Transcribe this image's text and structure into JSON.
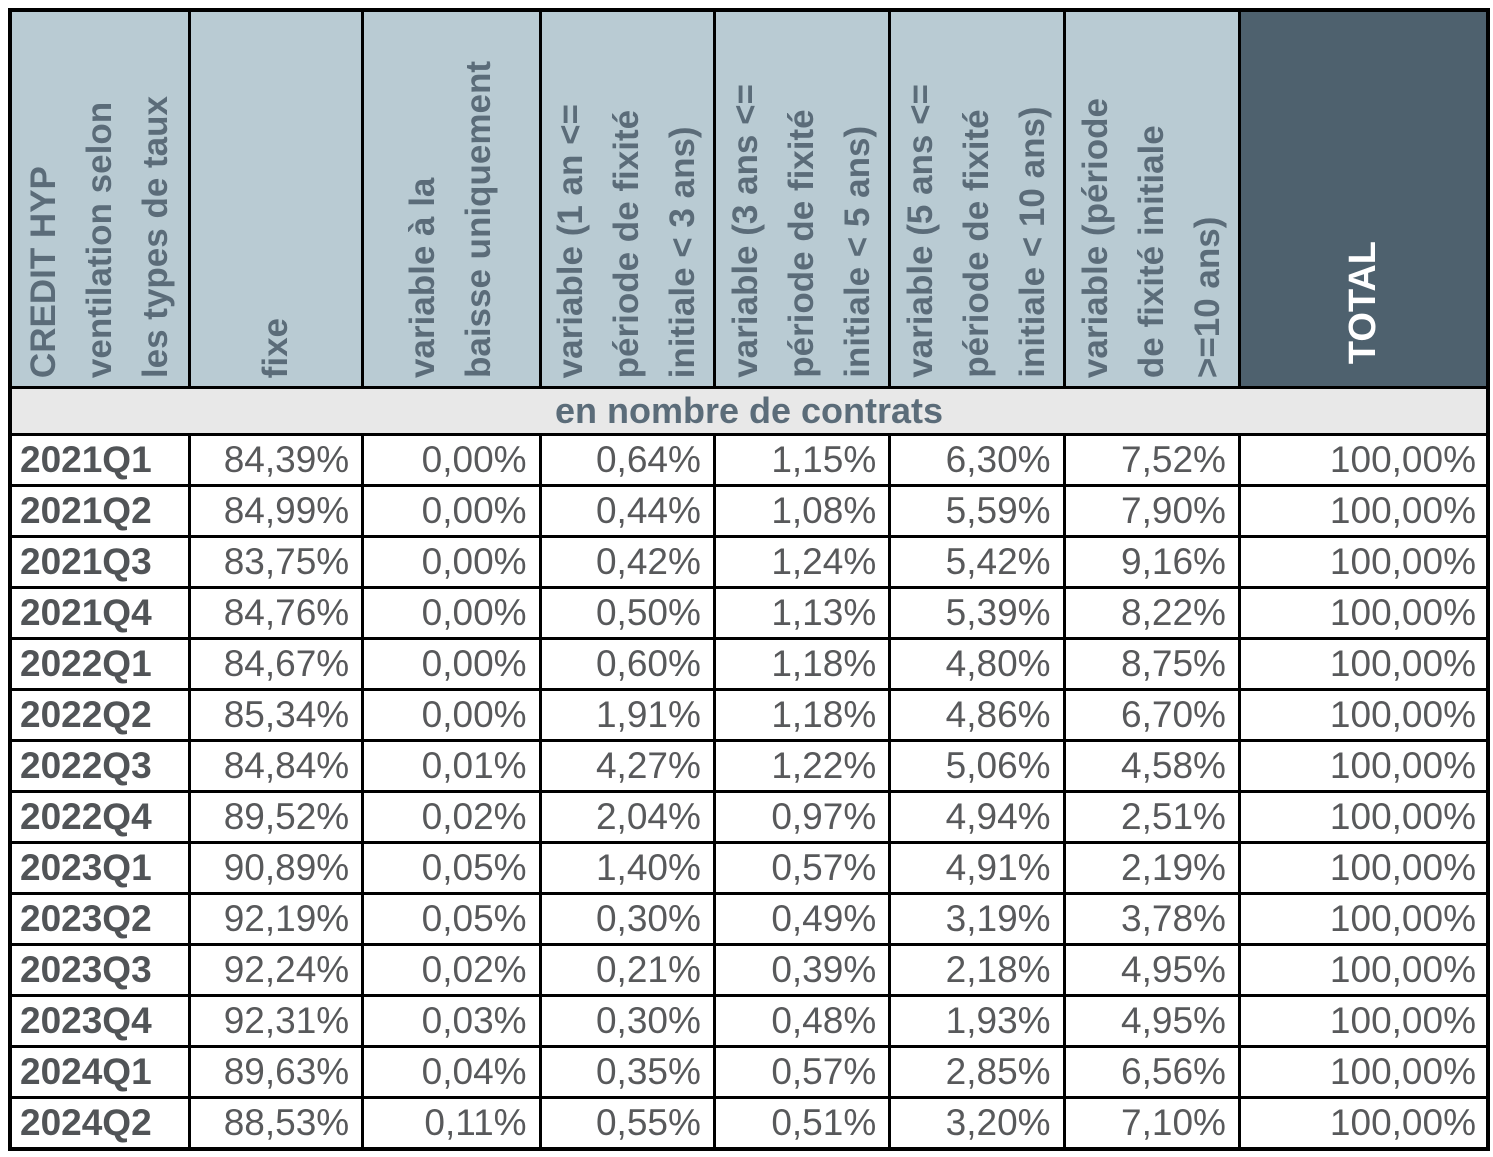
{
  "table": {
    "section_label": "en nombre de contrats",
    "columns": [
      {
        "label": "CREDIT HYP\nventilation selon\nles types de taux"
      },
      {
        "label": "fixe"
      },
      {
        "label": "variable à la\nbaisse uniquement"
      },
      {
        "label": "variable (1 an <=\npériode de fixité\ninitiale < 3 ans)"
      },
      {
        "label": "variable (3 ans <=\npériode de fixité\ninitiale < 5 ans)"
      },
      {
        "label": "variable (5 ans <=\npériode de fixité\ninitiale < 10 ans)"
      },
      {
        "label": "variable (période\nde fixité initiale\n>=10 ans)"
      },
      {
        "label": "TOTAL"
      }
    ],
    "rows": [
      {
        "period": "2021Q1",
        "values": [
          "84,39%",
          "0,00%",
          "0,64%",
          "1,15%",
          "6,30%",
          "7,52%",
          "100,00%"
        ]
      },
      {
        "period": "2021Q2",
        "values": [
          "84,99%",
          "0,00%",
          "0,44%",
          "1,08%",
          "5,59%",
          "7,90%",
          "100,00%"
        ]
      },
      {
        "period": "2021Q3",
        "values": [
          "83,75%",
          "0,00%",
          "0,42%",
          "1,24%",
          "5,42%",
          "9,16%",
          "100,00%"
        ]
      },
      {
        "period": "2021Q4",
        "values": [
          "84,76%",
          "0,00%",
          "0,50%",
          "1,13%",
          "5,39%",
          "8,22%",
          "100,00%"
        ]
      },
      {
        "period": "2022Q1",
        "values": [
          "84,67%",
          "0,00%",
          "0,60%",
          "1,18%",
          "4,80%",
          "8,75%",
          "100,00%"
        ]
      },
      {
        "period": "2022Q2",
        "values": [
          "85,34%",
          "0,00%",
          "1,91%",
          "1,18%",
          "4,86%",
          "6,70%",
          "100,00%"
        ]
      },
      {
        "period": "2022Q3",
        "values": [
          "84,84%",
          "0,01%",
          "4,27%",
          "1,22%",
          "5,06%",
          "4,58%",
          "100,00%"
        ]
      },
      {
        "period": "2022Q4",
        "values": [
          "89,52%",
          "0,02%",
          "2,04%",
          "0,97%",
          "4,94%",
          "2,51%",
          "100,00%"
        ]
      },
      {
        "period": "2023Q1",
        "values": [
          "90,89%",
          "0,05%",
          "1,40%",
          "0,57%",
          "4,91%",
          "2,19%",
          "100,00%"
        ]
      },
      {
        "period": "2023Q2",
        "values": [
          "92,19%",
          "0,05%",
          "0,30%",
          "0,49%",
          "3,19%",
          "3,78%",
          "100,00%"
        ]
      },
      {
        "period": "2023Q3",
        "values": [
          "92,24%",
          "0,02%",
          "0,21%",
          "0,39%",
          "2,18%",
          "4,95%",
          "100,00%"
        ]
      },
      {
        "period": "2023Q4",
        "values": [
          "92,31%",
          "0,03%",
          "0,30%",
          "0,48%",
          "1,93%",
          "4,95%",
          "100,00%"
        ]
      },
      {
        "period": "2024Q1",
        "values": [
          "89,63%",
          "0,04%",
          "0,35%",
          "0,57%",
          "2,85%",
          "6,56%",
          "100,00%"
        ]
      },
      {
        "period": "2024Q2",
        "values": [
          "88,53%",
          "0,11%",
          "0,55%",
          "0,51%",
          "3,20%",
          "7,10%",
          "100,00%"
        ]
      }
    ]
  },
  "colors": {
    "header_bg": "#b9cbd3",
    "total_header_bg": "#4e616e",
    "section_bg": "#e8e8e8",
    "header_text": "#5b6c79",
    "total_header_text": "#ffffff",
    "data_text": "#58595b",
    "row_label_text": "#515457",
    "border": "#000000"
  },
  "chart_data": {
    "type": "table",
    "title": "CREDIT HYP ventilation selon les types de taux",
    "subtitle": "en nombre de contrats",
    "unit": "percent",
    "categories": [
      "2021Q1",
      "2021Q2",
      "2021Q3",
      "2021Q4",
      "2022Q1",
      "2022Q2",
      "2022Q3",
      "2022Q4",
      "2023Q1",
      "2023Q2",
      "2023Q3",
      "2023Q4",
      "2024Q1",
      "2024Q2"
    ],
    "series": [
      {
        "name": "fixe",
        "values": [
          84.39,
          84.99,
          83.75,
          84.76,
          84.67,
          85.34,
          84.84,
          89.52,
          90.89,
          92.19,
          92.24,
          92.31,
          89.63,
          88.53
        ]
      },
      {
        "name": "variable à la baisse uniquement",
        "values": [
          0.0,
          0.0,
          0.0,
          0.0,
          0.0,
          0.0,
          0.01,
          0.02,
          0.05,
          0.05,
          0.02,
          0.03,
          0.04,
          0.11
        ]
      },
      {
        "name": "variable (1 an <= période de fixité initiale < 3 ans)",
        "values": [
          0.64,
          0.44,
          0.42,
          0.5,
          0.6,
          1.91,
          4.27,
          2.04,
          1.4,
          0.3,
          0.21,
          0.3,
          0.35,
          0.55
        ]
      },
      {
        "name": "variable (3 ans <= période de fixité initiale < 5 ans)",
        "values": [
          1.15,
          1.08,
          1.24,
          1.13,
          1.18,
          1.18,
          1.22,
          0.97,
          0.57,
          0.49,
          0.39,
          0.48,
          0.57,
          0.51
        ]
      },
      {
        "name": "variable (5 ans <= période de fixité initiale < 10 ans)",
        "values": [
          6.3,
          5.59,
          5.42,
          5.39,
          4.8,
          4.86,
          5.06,
          4.94,
          4.91,
          3.19,
          2.18,
          1.93,
          2.85,
          3.2
        ]
      },
      {
        "name": "variable (période de fixité initiale >=10 ans)",
        "values": [
          7.52,
          7.9,
          9.16,
          8.22,
          8.75,
          6.7,
          4.58,
          2.51,
          2.19,
          3.78,
          4.95,
          4.95,
          6.56,
          7.1
        ]
      },
      {
        "name": "TOTAL",
        "values": [
          100.0,
          100.0,
          100.0,
          100.0,
          100.0,
          100.0,
          100.0,
          100.0,
          100.0,
          100.0,
          100.0,
          100.0,
          100.0,
          100.0
        ]
      }
    ]
  }
}
